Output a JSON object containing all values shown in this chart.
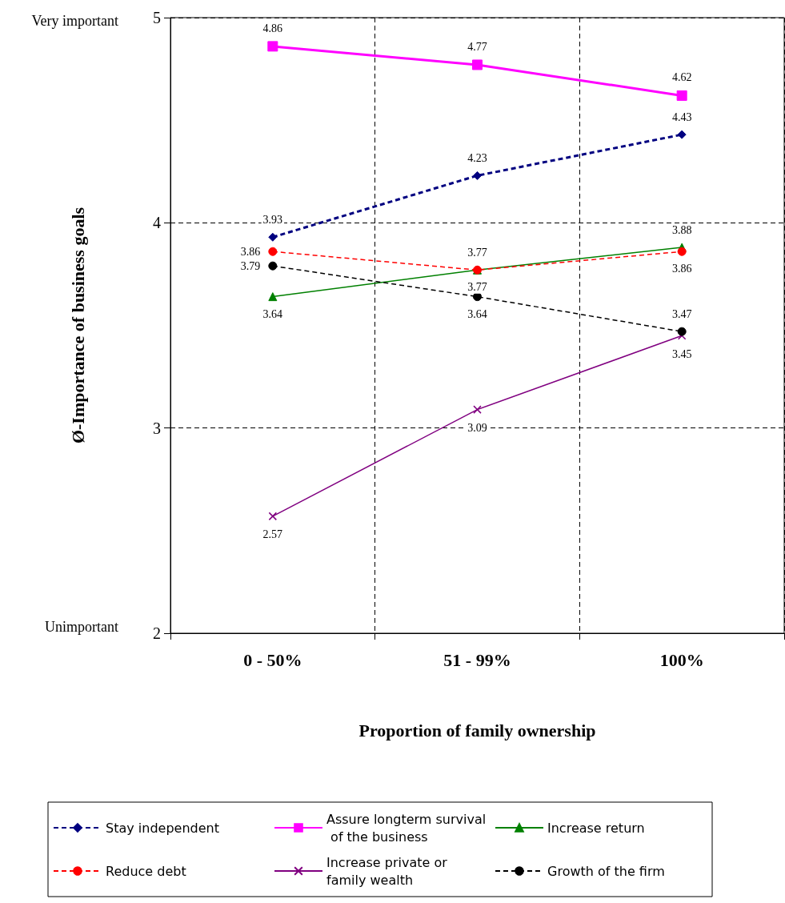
{
  "chart_data": {
    "type": "line",
    "xlabel": "Proportion of family ownership",
    "ylabel": "Ø-Importance of business goals",
    "categories": [
      "0 - 50%",
      "51 - 99%",
      "100%"
    ],
    "series": [
      {
        "name": "Stay independent",
        "color": "#000080",
        "values": [
          3.93,
          4.23,
          4.43
        ],
        "marker": "diamond",
        "line_style": "dashed"
      },
      {
        "name": "Assure longterm survival of the business",
        "color": "#ff00ff",
        "values": [
          4.86,
          4.77,
          4.62
        ],
        "marker": "square",
        "line_style": "solid"
      },
      {
        "name": "Increase return",
        "color": "#008000",
        "values": [
          3.64,
          3.77,
          3.88
        ],
        "marker": "triangle",
        "line_style": "solid"
      },
      {
        "name": "Reduce debt",
        "color": "#ff0000",
        "values": [
          3.86,
          3.77,
          3.86
        ],
        "marker": "circle",
        "line_style": "dashed"
      },
      {
        "name": "Increase private or family wealth",
        "color": "#800080",
        "values": [
          2.57,
          3.09,
          3.45
        ],
        "marker": "cross",
        "line_style": "solid"
      },
      {
        "name": "Growth of the firm",
        "color": "#000000",
        "values": [
          3.79,
          3.64,
          3.47
        ],
        "marker": "circle",
        "line_style": "dashed"
      }
    ],
    "ylim": [
      2,
      5
    ],
    "yticks": [
      2,
      3,
      4,
      5
    ],
    "annotations": [
      "Very important",
      "Unimportant"
    ],
    "grid": true,
    "legend": "bottom",
    "data_labels": true
  }
}
